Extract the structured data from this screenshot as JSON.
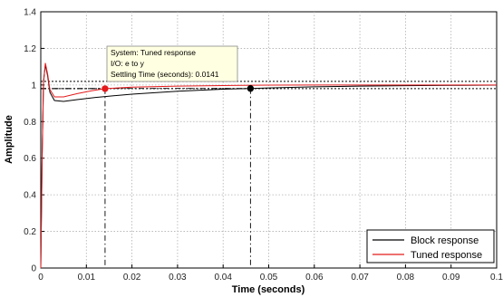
{
  "chart_data": {
    "type": "line",
    "xlabel": "Time (seconds)",
    "ylabel": "Amplitude",
    "xlim": [
      0,
      0.1
    ],
    "ylim": [
      0,
      1.4
    ],
    "x_ticks": [
      "0",
      "0.01",
      "0.02",
      "0.03",
      "0.04",
      "0.05",
      "0.06",
      "0.07",
      "0.08",
      "0.09",
      "0.1"
    ],
    "y_ticks": [
      "0",
      "0.2",
      "0.4",
      "0.6",
      "0.8",
      "1",
      "1.2",
      "1.4"
    ],
    "grid": true,
    "legend_position": "bottom-right",
    "settling_band": [
      0.98,
      1.02
    ],
    "series": [
      {
        "name": "Block response",
        "color": "#000000",
        "x": [
          0,
          0.0003,
          0.0006,
          0.001,
          0.0015,
          0.002,
          0.003,
          0.005,
          0.008,
          0.012,
          0.02,
          0.03,
          0.04,
          0.046,
          0.05,
          0.06,
          0.07,
          0.08,
          0.09,
          0.1
        ],
        "y": [
          0,
          0.62,
          1.02,
          1.11,
          1.05,
          0.96,
          0.915,
          0.91,
          0.92,
          0.932,
          0.95,
          0.966,
          0.977,
          0.981,
          0.984,
          0.99,
          0.994,
          0.996,
          0.998,
          0.999
        ]
      },
      {
        "name": "Tuned response",
        "color": "#e41a1c",
        "x": [
          0,
          0.0003,
          0.0006,
          0.001,
          0.0015,
          0.002,
          0.003,
          0.005,
          0.008,
          0.011,
          0.0141,
          0.02,
          0.03,
          0.04,
          0.05,
          0.06,
          0.07,
          0.08,
          0.09,
          0.1
        ],
        "y": [
          0,
          0.6,
          1.01,
          1.12,
          1.06,
          0.975,
          0.935,
          0.935,
          0.953,
          0.968,
          0.98,
          0.988,
          0.994,
          0.997,
          0.999,
          1.0,
          1.0,
          1.0,
          1.0,
          1.0
        ]
      }
    ],
    "markers": [
      {
        "series": "Tuned response",
        "x": 0.0141,
        "y": 0.98,
        "color": "#e41a1c"
      },
      {
        "series": "Block response",
        "x": 0.046,
        "y": 0.981,
        "color": "#000000"
      }
    ],
    "datatip": {
      "lines": [
        "System: Tuned response",
        "I/O: e to y",
        "Settling Time (seconds): 0.0141"
      ],
      "background": "#ffffe1",
      "border": "#888888"
    }
  }
}
